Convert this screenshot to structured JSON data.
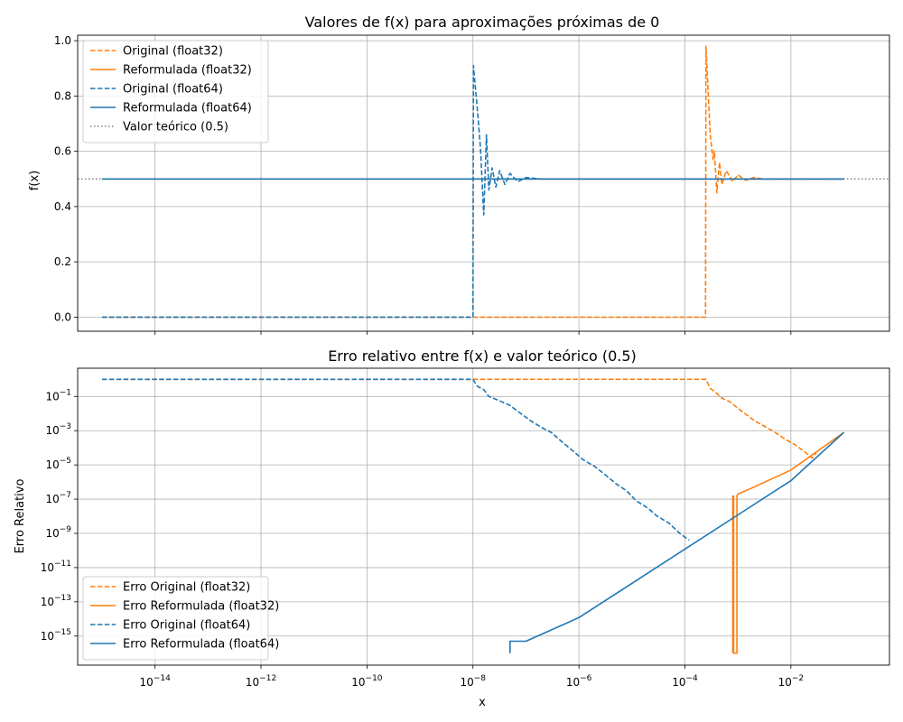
{
  "chart_data": [
    {
      "type": "line",
      "title": "Valores de f(x) para aproximações próximas de 0",
      "xlabel": "",
      "ylabel": "f(x)",
      "xscale": "log",
      "xlim": [
        1e-15,
        1
      ],
      "ylim": [
        -0.05,
        1.02
      ],
      "yticks": [
        "0.0",
        "0.2",
        "0.4",
        "0.6",
        "0.8",
        "1.0"
      ],
      "grid": true,
      "legend_position": "upper-left",
      "reference_line": {
        "label": "Valor teórico (0.5)",
        "y": 0.5,
        "color": "#808080",
        "style": "dotted"
      },
      "series": [
        {
          "name": "Original (float32)",
          "color": "#ff7f0e",
          "style": "dashed",
          "points": [
            [
              1e-15,
              0
            ],
            [
              0.000245,
              0
            ],
            [
              0.00025,
              0.98
            ],
            [
              0.00028,
              0.78
            ],
            [
              0.0003,
              0.66
            ],
            [
              0.00034,
              0.57
            ],
            [
              0.00036,
              0.6
            ],
            [
              0.0004,
              0.45
            ],
            [
              0.00045,
              0.56
            ],
            [
              0.0005,
              0.48
            ],
            [
              0.0006,
              0.53
            ],
            [
              0.0008,
              0.49
            ],
            [
              0.001,
              0.515
            ],
            [
              0.0014,
              0.495
            ],
            [
              0.002,
              0.505
            ],
            [
              0.003,
              0.5
            ],
            [
              0.1,
              0.5
            ]
          ]
        },
        {
          "name": "Reformulada (float32)",
          "color": "#ff7f0e",
          "style": "solid",
          "points": [
            [
              1e-15,
              0.5
            ],
            [
              0.1,
              0.5
            ]
          ]
        },
        {
          "name": "Original (float64)",
          "color": "#1f77b4",
          "style": "dashed",
          "points": [
            [
              1e-15,
              0
            ],
            [
              1e-08,
              0
            ],
            [
              1.02e-08,
              0.91
            ],
            [
              1.1e-08,
              0.84
            ],
            [
              1.25e-08,
              0.72
            ],
            [
              1.4e-08,
              0.6
            ],
            [
              1.6e-08,
              0.37
            ],
            [
              1.8e-08,
              0.66
            ],
            [
              2e-08,
              0.46
            ],
            [
              2.3e-08,
              0.54
            ],
            [
              2.7e-08,
              0.47
            ],
            [
              3.2e-08,
              0.53
            ],
            [
              4e-08,
              0.48
            ],
            [
              5e-08,
              0.52
            ],
            [
              7e-08,
              0.49
            ],
            [
              1e-07,
              0.505
            ],
            [
              2e-07,
              0.5
            ],
            [
              0.1,
              0.5
            ]
          ]
        },
        {
          "name": "Reformulada (float64)",
          "color": "#1f77b4",
          "style": "solid",
          "points": [
            [
              1e-15,
              0.5
            ],
            [
              0.1,
              0.5
            ]
          ]
        }
      ]
    },
    {
      "type": "line",
      "title": "Erro relativo entre f(x) e valor teórico (0.5)",
      "xlabel": "x",
      "ylabel": "Erro Relativo",
      "xscale": "log",
      "yscale": "log",
      "xlim": [
        1e-15,
        1
      ],
      "ylim": [
        1e-16,
        1
      ],
      "xticks": [
        -14,
        -12,
        -10,
        -8,
        -6,
        -4,
        -2
      ],
      "yticks": [
        -1,
        -3,
        -5,
        -7,
        -9,
        -11,
        -13,
        -15
      ],
      "grid": true,
      "legend_position": "lower-left",
      "series": [
        {
          "name": "Erro Original (float32)",
          "color": "#ff7f0e",
          "style": "dashed",
          "points": [
            [
              1e-15,
              1
            ],
            [
              0.00025,
              1
            ],
            [
              0.0003,
              0.3
            ],
            [
              0.0004,
              0.15
            ],
            [
              0.0005,
              0.08
            ],
            [
              0.0007,
              0.05
            ],
            [
              0.001,
              0.02
            ],
            [
              0.0015,
              0.008
            ],
            [
              0.002,
              0.004
            ],
            [
              0.003,
              0.002
            ],
            [
              0.005,
              0.0008
            ],
            [
              0.008,
              0.0003
            ],
            [
              0.012,
              0.00015
            ],
            [
              0.018,
              6e-05
            ],
            [
              0.025,
              2.5e-05
            ],
            [
              0.03,
              5e-05
            ]
          ]
        },
        {
          "name": "Erro Reformulada (float32)",
          "color": "#ff7f0e",
          "style": "solid",
          "points": [
            [
              0.0008,
              1e-16
            ],
            [
              0.0008,
              1.5e-07
            ],
            [
              0.00083,
              1.5e-07
            ],
            [
              0.00083,
              1e-16
            ],
            [
              0.00096,
              1e-16
            ],
            [
              0.00096,
              1.5e-07
            ],
            [
              0.001,
              2e-07
            ],
            [
              0.002,
              5e-07
            ],
            [
              0.01,
              5e-06
            ],
            [
              0.1,
              0.0008
            ]
          ]
        },
        {
          "name": "Erro Original (float64)",
          "color": "#1f77b4",
          "style": "dashed",
          "points": [
            [
              1e-15,
              1
            ],
            [
              1e-08,
              1
            ],
            [
              1.2e-08,
              0.4
            ],
            [
              1.6e-08,
              0.25
            ],
            [
              2e-08,
              0.1
            ],
            [
              3e-08,
              0.06
            ],
            [
              5e-08,
              0.03
            ],
            [
              8e-08,
              0.01
            ],
            [
              1.2e-07,
              0.004
            ],
            [
              2e-07,
              0.0015
            ],
            [
              3e-07,
              0.0008
            ],
            [
              5e-07,
              0.0002
            ],
            [
              8e-07,
              6e-05
            ],
            [
              1.2e-06,
              2e-05
            ],
            [
              2e-06,
              8e-06
            ],
            [
              3e-06,
              3e-06
            ],
            [
              5e-06,
              8e-07
            ],
            [
              8e-06,
              3e-07
            ],
            [
              1.2e-05,
              8e-08
            ],
            [
              2e-05,
              3e-08
            ],
            [
              3e-05,
              1e-08
            ],
            [
              5e-05,
              4e-09
            ],
            [
              8e-05,
              1e-09
            ],
            [
              0.00012,
              4e-10
            ]
          ]
        },
        {
          "name": "Erro Reformulada (float64)",
          "color": "#1f77b4",
          "style": "solid",
          "points": [
            [
              5e-08,
              1e-16
            ],
            [
              5e-08,
              5e-16
            ],
            [
              1e-07,
              5e-16
            ],
            [
              1e-06,
              1.2e-14
            ],
            [
              1e-05,
              1.2e-12
            ],
            [
              0.0001,
              1.2e-10
            ],
            [
              0.001,
              1.2e-08
            ],
            [
              0.01,
              1.2e-06
            ],
            [
              0.1,
              0.0008
            ]
          ]
        }
      ]
    }
  ]
}
